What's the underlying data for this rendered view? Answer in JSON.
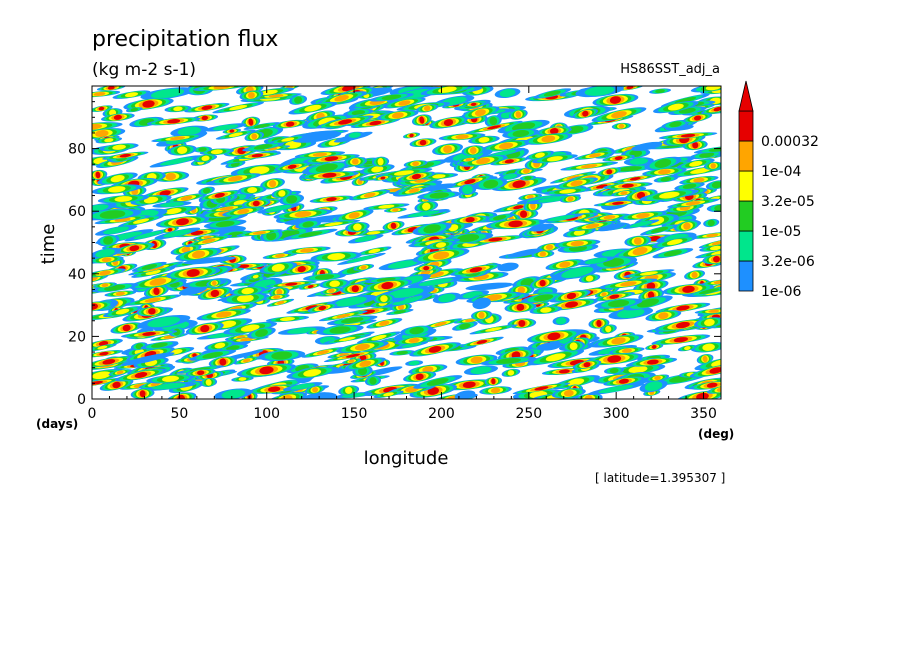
{
  "chart_data": {
    "type": "heatmap",
    "title": "precipitation flux",
    "subtitle": "(kg m-2 s-1)",
    "dataset": "HS86SST_adj_a",
    "xlabel": "longitude",
    "ylabel": "time",
    "xunit": "(deg)",
    "yunit": "(days)",
    "xlim": [
      0,
      360
    ],
    "ylim": [
      0,
      100
    ],
    "xticks": [
      0,
      50,
      100,
      150,
      200,
      250,
      300,
      350
    ],
    "yticks": [
      0,
      20,
      40,
      60,
      80
    ],
    "note": "[ latitude=1.395307 ]",
    "colorbar": {
      "levels": [
        "1e-06",
        "3.2e-06",
        "1e-05",
        "3.2e-05",
        "1e-04",
        "0.00032"
      ],
      "colors": [
        "#1e90ff",
        "#00e68c",
        "#22cc22",
        "#ffff00",
        "#ffa500",
        "#e60000"
      ],
      "over_color": "#e60000"
    },
    "grid": false
  }
}
